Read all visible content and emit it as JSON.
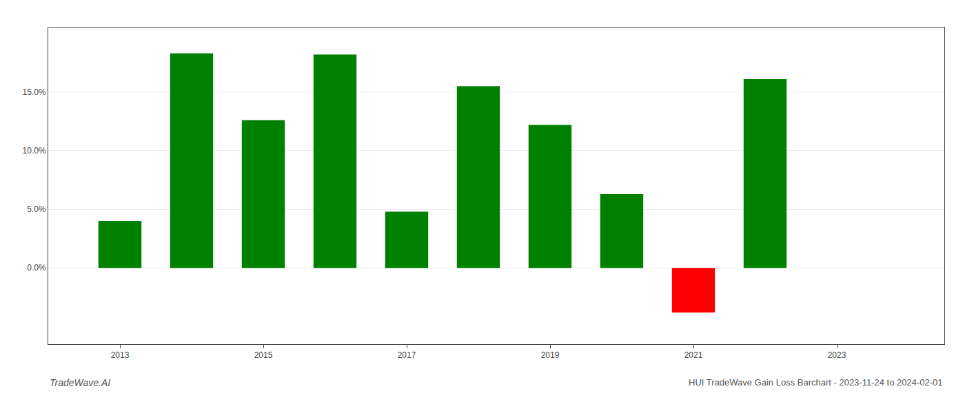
{
  "chart_data": {
    "type": "bar",
    "title": "HUI TradeWave Gain Loss Barchart - 2023-11-24 to 2024-02-01",
    "annotations": [
      "TradeWave.AI"
    ],
    "x": [
      2013,
      2014,
      2015,
      2016,
      2017,
      2018,
      2019,
      2020,
      2021,
      2022
    ],
    "values": [
      0.04,
      0.183,
      0.126,
      0.182,
      0.048,
      0.155,
      0.122,
      0.063,
      -0.038,
      0.161
    ],
    "colors": [
      "#008000",
      "#008000",
      "#008000",
      "#008000",
      "#008000",
      "#008000",
      "#008000",
      "#008000",
      "#ff0000",
      "#008000"
    ],
    "xlim": [
      2012.0,
      2024.5
    ],
    "xticks": [
      2013,
      2015,
      2017,
      2019,
      2021,
      2023
    ],
    "ylim": [
      -0.065,
      0.205
    ],
    "yticks": [
      {
        "value": 0.0,
        "label": "0.0%"
      },
      {
        "value": 0.05,
        "label": "5.0%"
      },
      {
        "value": 0.1,
        "label": "10.0%"
      },
      {
        "value": 0.15,
        "label": "15.0%"
      }
    ],
    "grid": true
  }
}
